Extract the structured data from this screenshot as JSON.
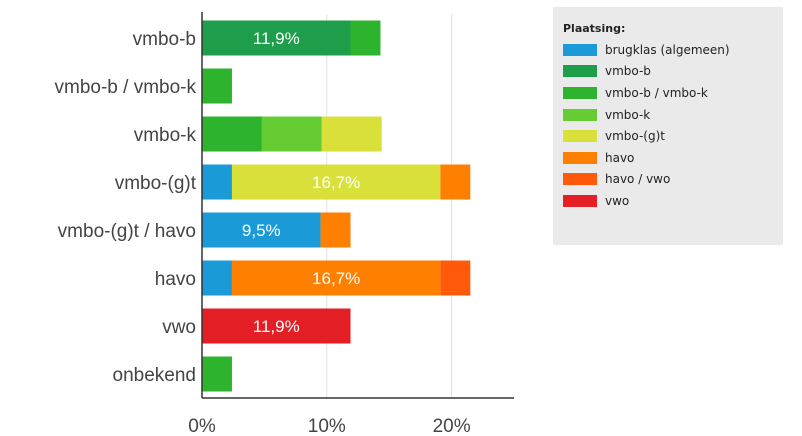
{
  "chart_data": {
    "type": "bar",
    "orientation": "horizontal",
    "stacked": true,
    "legend_title": "Plaatsing:",
    "legend_position": "right",
    "categories": [
      "vmbo-b",
      "vmbo-b / vmbo-k",
      "vmbo-k",
      "vmbo-(g)t",
      "vmbo-(g)t / havo",
      "havo",
      "vwo",
      "onbekend"
    ],
    "series": [
      {
        "name": "brugklas (algemeen)",
        "color": "#1a9bd7",
        "values": [
          0,
          0,
          0,
          2.4,
          9.5,
          2.4,
          0,
          0
        ]
      },
      {
        "name": "vmbo-b",
        "color": "#1e9e4a",
        "values": [
          11.9,
          0,
          0,
          0,
          0,
          0,
          0,
          0
        ]
      },
      {
        "name": "vmbo-b / vmbo-k",
        "color": "#2db32d",
        "values": [
          2.4,
          2.4,
          4.8,
          0,
          0,
          0,
          0,
          2.4
        ]
      },
      {
        "name": "vmbo-k",
        "color": "#66cc33",
        "values": [
          0,
          0,
          4.8,
          0,
          0,
          0,
          0,
          0
        ]
      },
      {
        "name": "vmbo-(g)t",
        "color": "#d9e03a",
        "values": [
          0,
          0,
          4.8,
          16.7,
          0,
          0,
          0,
          0
        ]
      },
      {
        "name": "havo",
        "color": "#ff7f00",
        "values": [
          0,
          0,
          0,
          2.4,
          2.4,
          16.7,
          0,
          0
        ]
      },
      {
        "name": "havo / vwo",
        "color": "#ff5a0a",
        "values": [
          0,
          0,
          0,
          0,
          0,
          2.4,
          0,
          0
        ]
      },
      {
        "name": "vwo",
        "color": "#e31e24",
        "values": [
          0,
          0,
          0,
          0,
          0,
          0,
          11.9,
          0
        ]
      }
    ],
    "data_labels": [
      {
        "category": "vmbo-b",
        "series": "vmbo-b",
        "text": "11,9%"
      },
      {
        "category": "vmbo-(g)t",
        "series": "vmbo-(g)t",
        "text": "16,7%"
      },
      {
        "category": "vmbo-(g)t / havo",
        "series": "brugklas (algemeen)",
        "text": "9,5%"
      },
      {
        "category": "havo",
        "series": "havo",
        "text": "16,7%"
      },
      {
        "category": "vwo",
        "series": "vwo",
        "text": "11,9%"
      }
    ],
    "x_ticks": [
      {
        "value": 0,
        "label": "0%"
      },
      {
        "value": 10,
        "label": "10%"
      },
      {
        "value": 20,
        "label": "20%"
      }
    ],
    "xlim": [
      0,
      25
    ],
    "grid": true,
    "axis_color": "#333333",
    "grid_color": "#e0e0e0"
  }
}
